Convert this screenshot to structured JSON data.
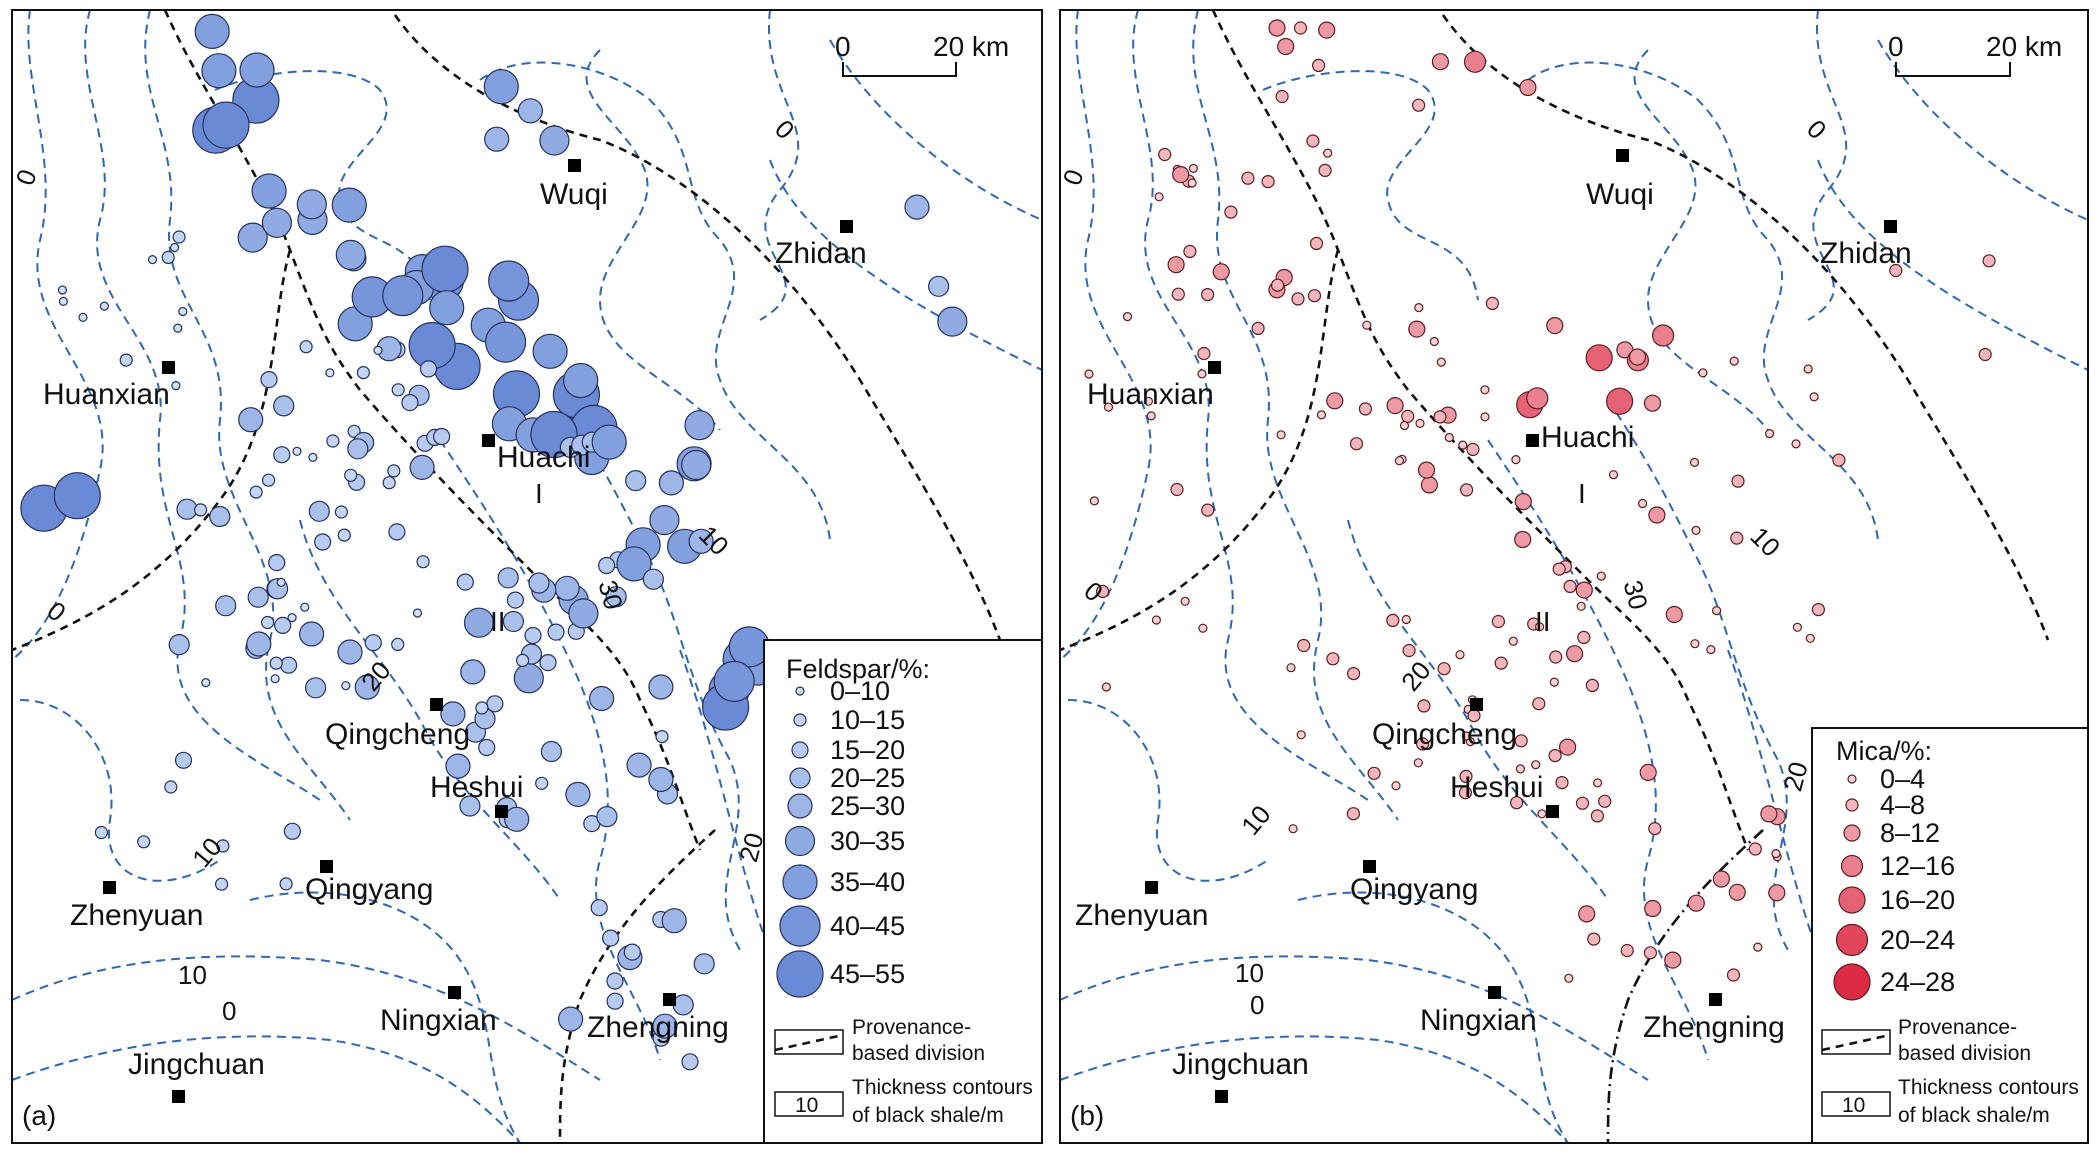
{
  "panels": [
    {
      "id": "a",
      "panel_label": "(a)",
      "variable": "feldspar",
      "scale": {
        "start": "0",
        "end": "20 km"
      },
      "colors": {
        "fill": "#6a8ad6",
        "light": "#cfe0f7",
        "stroke": "#26315c"
      },
      "cities": [
        {
          "name": "Wuqi"
        },
        {
          "name": "Zhidan"
        },
        {
          "name": "Huanxian"
        },
        {
          "name": "Huachi"
        },
        {
          "name": "Qingcheng"
        },
        {
          "name": "Heshui"
        },
        {
          "name": "Zhenyuan"
        },
        {
          "name": "Qingyang"
        },
        {
          "name": "Ningxian"
        },
        {
          "name": "Zhengning"
        },
        {
          "name": "Jingchuan"
        }
      ],
      "zone_labels": [
        "I",
        "II"
      ],
      "contour_labels": [
        "0",
        "0",
        "0",
        "10",
        "10",
        "10",
        "20",
        "20",
        "30",
        "0"
      ],
      "legend": {
        "title": "Feldspar/%:",
        "classes": [
          "0–10",
          "10–15",
          "15–20",
          "20–25",
          "25–30",
          "30–35",
          "35–40",
          "40–45",
          "45–55"
        ],
        "division_label": [
          "Provenance-",
          "based division"
        ],
        "contour_label": [
          "Thickness contours",
          "of black shale/m"
        ],
        "contour_sample": "10"
      }
    },
    {
      "id": "b",
      "panel_label": "(b)",
      "variable": "mica",
      "scale": {
        "start": "0",
        "end": "20 km"
      },
      "colors": {
        "fill": "#dc2b44",
        "light": "#f7d2d5",
        "stroke": "#5a1e22"
      },
      "cities": [
        {
          "name": "Wuqi"
        },
        {
          "name": "Zhidan"
        },
        {
          "name": "Huanxian"
        },
        {
          "name": "Huachi"
        },
        {
          "name": "Qingcheng"
        },
        {
          "name": "Heshui"
        },
        {
          "name": "Zhenyuan"
        },
        {
          "name": "Qingyang"
        },
        {
          "name": "Ningxian"
        },
        {
          "name": "Zhengning"
        },
        {
          "name": "Jingchuan"
        }
      ],
      "zone_labels": [
        "I",
        "II"
      ],
      "contour_labels": [
        "0",
        "0",
        "0",
        "10",
        "10",
        "10",
        "20",
        "20",
        "30",
        "0"
      ],
      "legend": {
        "title": "Mica/%:",
        "classes": [
          "0–4",
          "4–8",
          "8–12",
          "12–16",
          "16–20",
          "20–24",
          "24–28"
        ],
        "division_label": [
          "Provenance-",
          "based division"
        ],
        "contour_label": [
          "Thickness contours",
          "of black shale/m"
        ],
        "contour_sample": "10"
      }
    }
  ]
}
